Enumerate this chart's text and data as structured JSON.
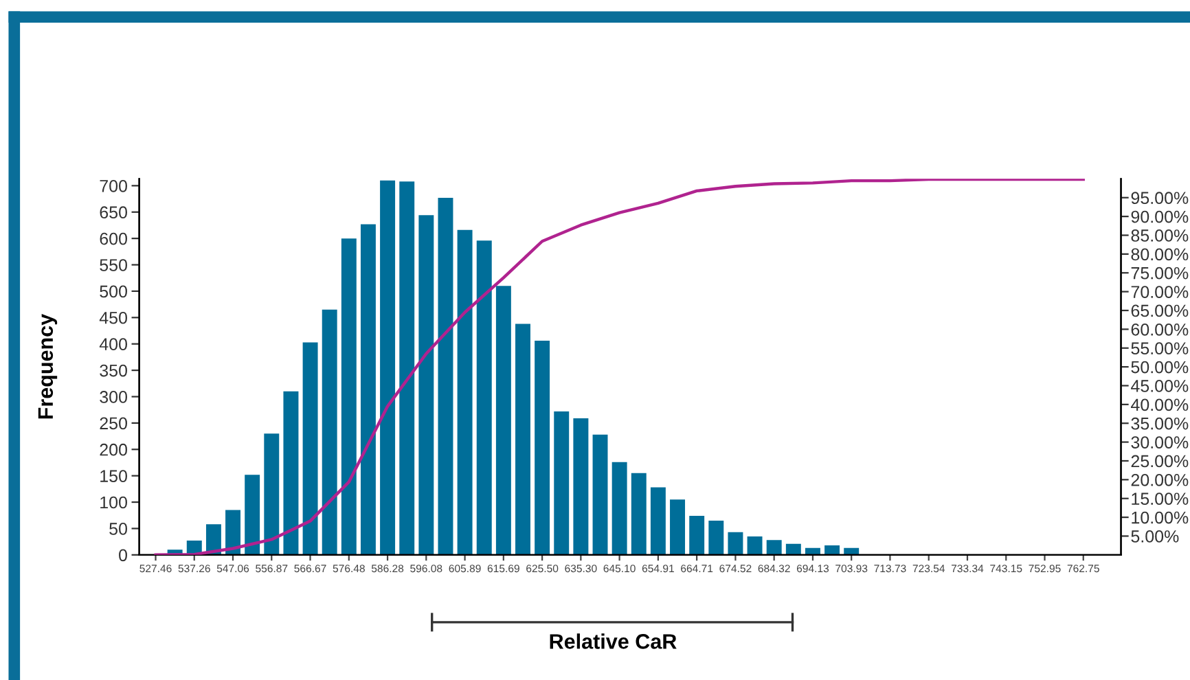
{
  "chart_data": {
    "type": "histogram",
    "ylabel": "Frequency",
    "xlabel": "Relative CaR",
    "bins": [
      525.01,
      529.91,
      534.81,
      539.72,
      544.62,
      549.52,
      554.42,
      559.32,
      564.23,
      569.13,
      574.03,
      578.93,
      583.83,
      588.74,
      593.64,
      598.54,
      603.44,
      608.34,
      613.25,
      618.15,
      623.05,
      627.95,
      632.85,
      637.76,
      642.66,
      647.56,
      652.46,
      657.36,
      662.27,
      667.17,
      672.07,
      676.97,
      681.87,
      686.78,
      691.68,
      696.58,
      701.48,
      706.38,
      711.29,
      716.19,
      721.09,
      725.99,
      730.89,
      735.8,
      740.7,
      745.6,
      750.5,
      755.4,
      760.31,
      765.21
    ],
    "series": [
      {
        "values": [
          0,
          10,
          27,
          58,
          85,
          152,
          230,
          310,
          403,
          465,
          600,
          627,
          710,
          708,
          644,
          677,
          616,
          596,
          510,
          438,
          406,
          272,
          259,
          228,
          176,
          155,
          128,
          105,
          74,
          65,
          43,
          35,
          28,
          21,
          13,
          18,
          13,
          null,
          null,
          0,
          0,
          1,
          1,
          0,
          1,
          0,
          null,
          null,
          0
        ],
        "colors": [
          "#006e99",
          "#006e99",
          "#006e99",
          "#006e99",
          "#006e99",
          "#006e99",
          "#006e99",
          "#006e99",
          "#006e99",
          "#006e99",
          "#006e99",
          "#006e99",
          "#006e99",
          "#006e99",
          "#006e99",
          "#006e99",
          "#006e99",
          "#006e99",
          "#006e99",
          "#006e99",
          "#006e99",
          "#006e99",
          "#006e99",
          "#006e99",
          "#006e99",
          "#006e99",
          "#006e99",
          "#006e99",
          "#006e99",
          "#006e99",
          "#006e99",
          "#006e99",
          "#006e99",
          "#006e99",
          "#006e99",
          "#006e99",
          "#006e99",
          "#d3e5ef",
          "#d3e5ef",
          "#cccccc",
          "#cccccc",
          "#222222",
          "#cccccc",
          "#cccccc",
          "#cccccc",
          "#cccccc",
          "#222222",
          "#222222",
          "#cccccc"
        ]
      },
      {
        "type": "line",
        "axis": "y2",
        "color": "#b0238f",
        "x": [
          527.46,
          537.26,
          547.06,
          556.87,
          566.67,
          576.48,
          586.28,
          596.08,
          605.89,
          615.69,
          625.5,
          635.3,
          645.1,
          654.91,
          664.71,
          674.52,
          684.32,
          694.13,
          703.93,
          713.73,
          723.54,
          733.34,
          743.15,
          752.95,
          762.75
        ],
        "values": [
          0,
          0.1,
          1.7,
          4.1,
          9.0,
          19.4,
          39.5,
          53.5,
          64.5,
          73.7,
          83.4,
          87.7,
          91.0,
          93.5,
          96.8,
          98.0,
          98.7,
          98.9,
          99.5,
          99.5,
          99.9,
          99.9,
          99.9,
          99.9,
          99.9
        ]
      }
    ],
    "xlim": [
      523.3,
      772.3
    ],
    "xticks": [
      {
        "value": 527.46,
        "label": "527.46"
      },
      {
        "value": 537.26,
        "label": "537.26"
      },
      {
        "value": 547.06,
        "label": "547.06"
      },
      {
        "value": 556.87,
        "label": "556.87"
      },
      {
        "value": 566.67,
        "label": "566.67"
      },
      {
        "value": 576.48,
        "label": "576.48"
      },
      {
        "value": 586.28,
        "label": "586.28"
      },
      {
        "value": 596.08,
        "label": "596.08"
      },
      {
        "value": 605.89,
        "label": "605.89"
      },
      {
        "value": 615.69,
        "label": "615.69"
      },
      {
        "value": 625.5,
        "label": "625.50"
      },
      {
        "value": 635.3,
        "label": "635.30"
      },
      {
        "value": 645.1,
        "label": "645.10"
      },
      {
        "value": 654.91,
        "label": "654.91"
      },
      {
        "value": 664.71,
        "label": "664.71"
      },
      {
        "value": 674.52,
        "label": "674.52"
      },
      {
        "value": 684.32,
        "label": "684.32"
      },
      {
        "value": 694.13,
        "label": "694.13"
      },
      {
        "value": 703.93,
        "label": "703.93"
      },
      {
        "value": 713.73,
        "label": "713.73"
      },
      {
        "value": 723.54,
        "label": "723.54"
      },
      {
        "value": 733.34,
        "label": "733.34"
      },
      {
        "value": 743.15,
        "label": "743.15"
      },
      {
        "value": 752.95,
        "label": "752.95"
      },
      {
        "value": 762.75,
        "label": "762.75"
      }
    ],
    "ylim": [
      0,
      713
    ],
    "yticks": [
      0,
      50,
      100,
      150,
      200,
      250,
      300,
      350,
      400,
      450,
      500,
      550,
      600,
      650,
      700
    ],
    "y2lim": [
      0,
      100
    ],
    "y2ticks": [
      {
        "value": 5,
        "label": "5.00%"
      },
      {
        "value": 10,
        "label": "10.00%"
      },
      {
        "value": 15,
        "label": "15.00%"
      },
      {
        "value": 20,
        "label": "20.00%"
      },
      {
        "value": 25,
        "label": "25.00%"
      },
      {
        "value": 30,
        "label": "30.00%"
      },
      {
        "value": 35,
        "label": "35.00%"
      },
      {
        "value": 40,
        "label": "40.00%"
      },
      {
        "value": 45,
        "label": "45.00%"
      },
      {
        "value": 50,
        "label": "50.00%"
      },
      {
        "value": 55,
        "label": "55.00%"
      },
      {
        "value": 60,
        "label": "60.00%"
      },
      {
        "value": 65,
        "label": "65.00%"
      },
      {
        "value": 70,
        "label": "70.00%"
      },
      {
        "value": 75,
        "label": "75.00%"
      },
      {
        "value": 80,
        "label": "80.00%"
      },
      {
        "value": 85,
        "label": "85.00%"
      },
      {
        "value": 90,
        "label": "90.00%"
      },
      {
        "value": 95,
        "label": "95.00%"
      }
    ],
    "grid": false,
    "legend": false
  }
}
